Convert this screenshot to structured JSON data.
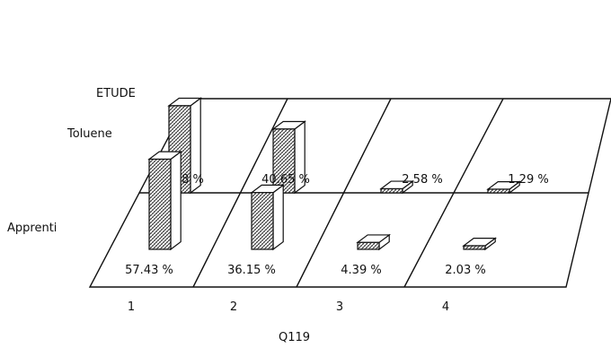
{
  "chart_data": {
    "type": "bar",
    "style": "3d-bar",
    "title": "",
    "xlabel": "Q119",
    "zlabel": "ETUDE",
    "categories": [
      "1",
      "2",
      "3",
      "4"
    ],
    "series": [
      {
        "name": "Toluene",
        "values": [
          55.48,
          40.65,
          2.58,
          1.29
        ]
      },
      {
        "name": "Apprenti",
        "values": [
          57.43,
          36.15,
          4.39,
          2.03
        ]
      }
    ],
    "value_labels": {
      "Toluene": [
        "55.48 %",
        "40.65 %",
        "2.58 %",
        "1.29 %"
      ],
      "Apprenti": [
        "57.43 %",
        "36.15 %",
        "4.39 %",
        "2.03 %"
      ]
    },
    "unit": "%",
    "grid": true,
    "bar_pattern": "crosshatch"
  }
}
